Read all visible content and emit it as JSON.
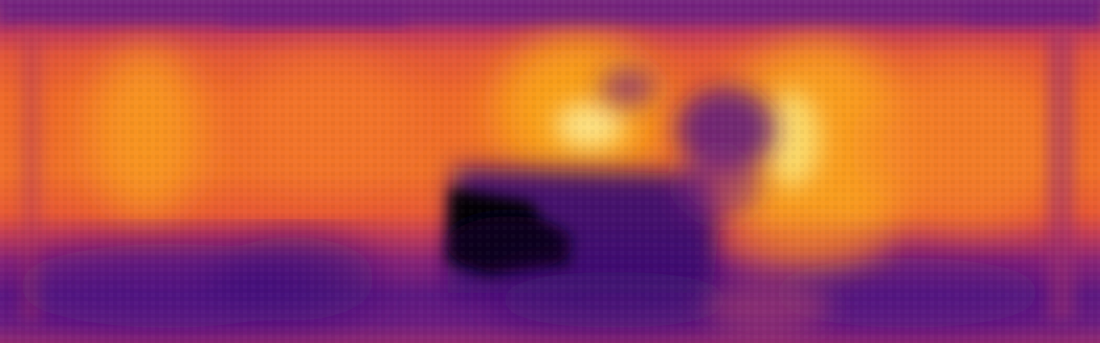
{
  "image": {
    "kind": "depth-map",
    "colormap": "inferno",
    "palette": {
      "darkest": "#000004",
      "deep_purple": "#3b0f70",
      "purple": "#6a1c81",
      "magenta": "#a52c60",
      "red_orange": "#d9463f",
      "orange": "#f7801c",
      "gold": "#fbb61a",
      "pale_yellow": "#fcffa4"
    }
  }
}
